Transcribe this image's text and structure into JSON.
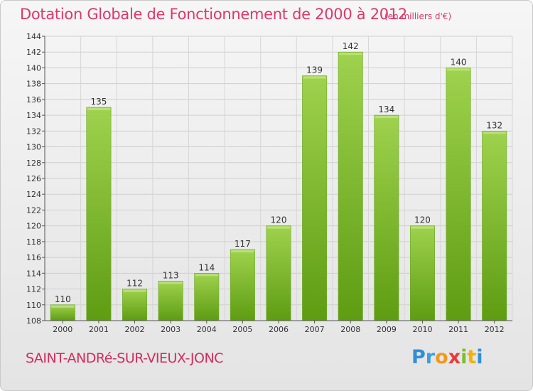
{
  "title": "Dotation Globale de Fonctionnement de 2000 à 2012",
  "subtitle": "(en milliers d'€)",
  "commune": "SAINT-ANDRé-SUR-VIEUX-JONC",
  "logo": {
    "letters": [
      "P",
      "r",
      "o",
      "x",
      "i",
      "t",
      "i"
    ],
    "colors": [
      "#2f8fd8",
      "#3aa0e0",
      "#f09a1a",
      "#e83a3a",
      "#7cbf2a",
      "#f0b010",
      "#2f8fd8"
    ]
  },
  "chart_data": {
    "type": "bar",
    "title": "Dotation Globale de Fonctionnement de 2000 à 2012",
    "categories": [
      "2000",
      "2001",
      "2002",
      "2003",
      "2004",
      "2005",
      "2006",
      "2007",
      "2008",
      "2009",
      "2010",
      "2011",
      "2012"
    ],
    "values": [
      110,
      135,
      112,
      113,
      114,
      117,
      120,
      139,
      142,
      134,
      120,
      140,
      132
    ],
    "ylim": [
      108,
      144
    ],
    "yticks": [
      108,
      110,
      112,
      114,
      116,
      118,
      120,
      122,
      124,
      126,
      128,
      130,
      132,
      134,
      136,
      138,
      140,
      142,
      144
    ],
    "grid": true,
    "bar_color_top": "#9fd24e",
    "bar_color_bottom": "#5e9c12"
  }
}
